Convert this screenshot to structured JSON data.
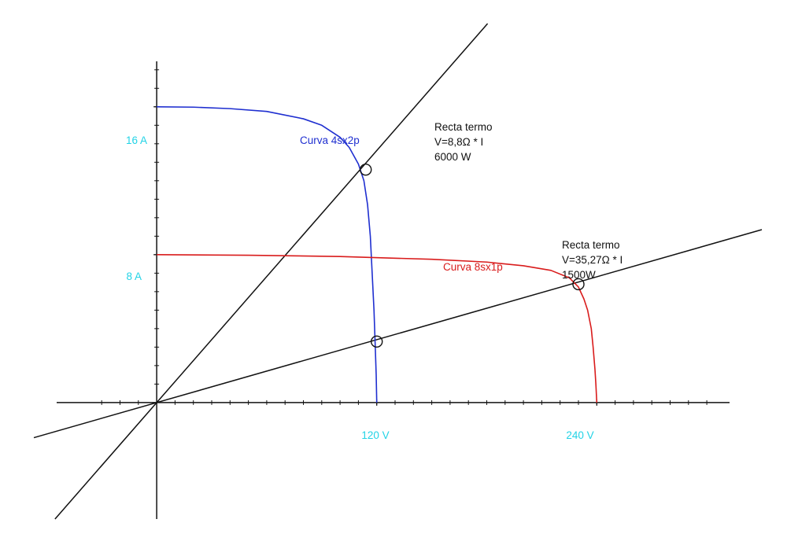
{
  "chart_data": {
    "type": "line",
    "x_ticks": [
      {
        "value": 120,
        "label": "120 V"
      },
      {
        "value": 240,
        "label": "240 V"
      }
    ],
    "y_ticks": [
      {
        "value": 8,
        "label": "8 A"
      },
      {
        "value": 16,
        "label": "16 A"
      }
    ],
    "xlim": [
      -67,
      330
    ],
    "ylim": [
      -6.3,
      20.5
    ],
    "series": [
      {
        "name": "Curva 4sx2p",
        "color": "#1f2fd0",
        "x": [
          0,
          20,
          40,
          60,
          80,
          90,
          100,
          105,
          110,
          113,
          115,
          116.5,
          117.5,
          118.5,
          119.2,
          119.7,
          120
        ],
        "y": [
          16,
          15.98,
          15.9,
          15.75,
          15.35,
          15.0,
          14.35,
          13.8,
          12.9,
          12.0,
          10.7,
          9.0,
          7.0,
          5.0,
          3.0,
          1.5,
          0
        ]
      },
      {
        "name": "Curva 8sx1p",
        "color": "#d91c1c",
        "x": [
          0,
          50,
          100,
          150,
          180,
          200,
          215,
          225,
          230,
          233,
          235,
          237,
          238,
          239,
          239.5,
          240
        ],
        "y": [
          8,
          7.97,
          7.9,
          7.75,
          7.6,
          7.4,
          7.15,
          6.75,
          6.25,
          5.6,
          5.0,
          4.0,
          3.0,
          1.8,
          1.0,
          0
        ]
      }
    ],
    "lines": [
      {
        "label": [
          "Recta termo",
          "V=8,8Ω * I",
          "6000 W"
        ],
        "slope": 0.1136,
        "color": "#111111"
      },
      {
        "label": [
          "Recta termo",
          "V=35,27Ω * I",
          "1500W"
        ],
        "slope": 0.02835,
        "color": "#111111"
      }
    ],
    "operating_points": [
      {
        "x": 114,
        "y": 12.6
      },
      {
        "x": 120,
        "y": 3.3
      },
      {
        "x": 230,
        "y": 6.4
      }
    ],
    "grid": false
  }
}
